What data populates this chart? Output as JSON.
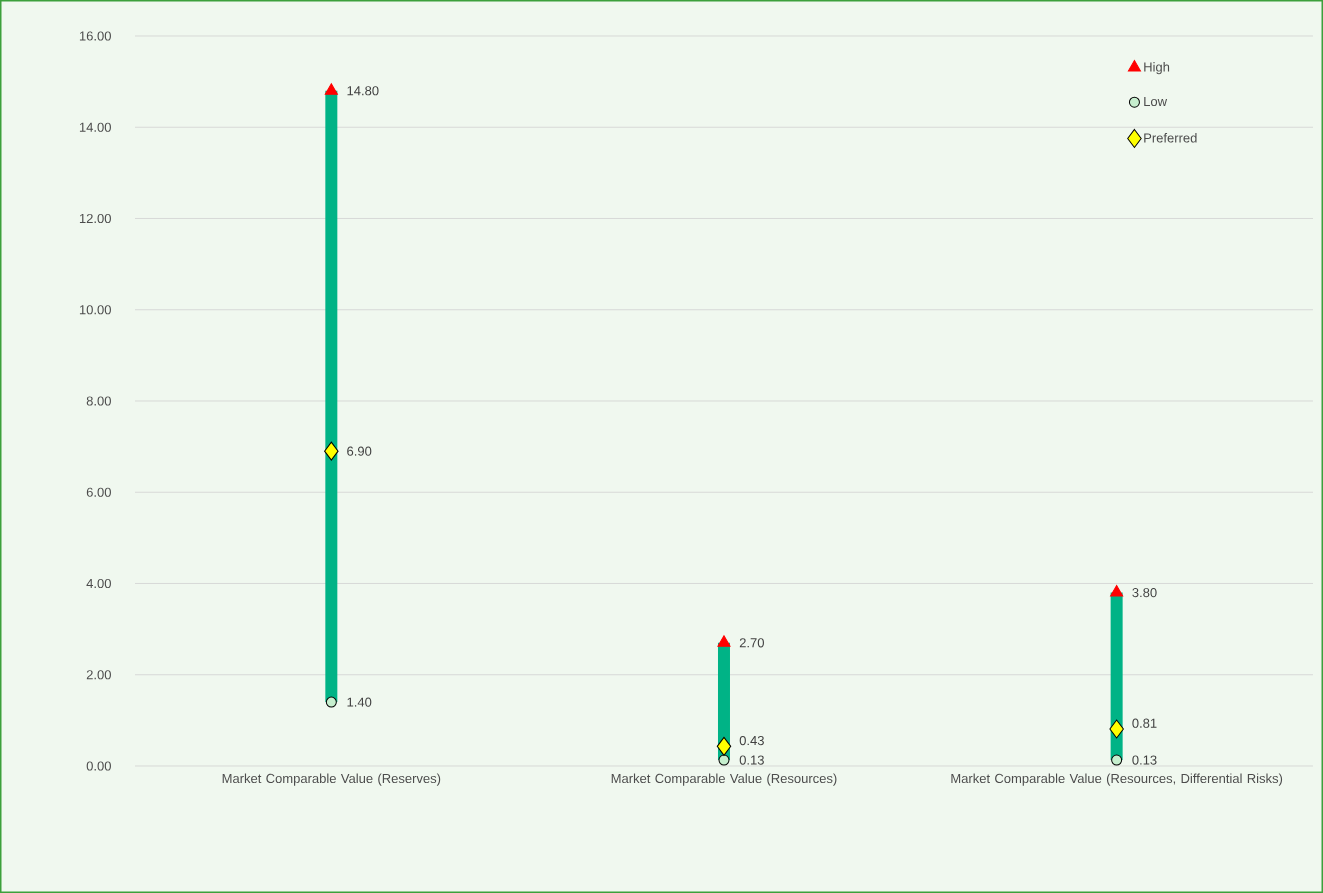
{
  "chart_data": {
    "type": "bar",
    "categories": [
      "Market Comparable Value (Reserves)",
      "Market Comparable Value (Resources)",
      "Market Comparable Value (Resources, Differential Risks)"
    ],
    "series": [
      {
        "color": "#00b386",
        "base": [
          1.4,
          0.13,
          0.13
        ],
        "values": [
          13.4,
          2.57,
          3.67
        ]
      },
      {
        "type": "scatter",
        "name": "High",
        "color": "#ff0000",
        "marker": "triangle",
        "values": [
          14.8,
          2.7,
          3.8
        ],
        "value_labels": [
          "14.80",
          "2.70",
          "3.80"
        ]
      },
      {
        "type": "scatter",
        "name": "Low",
        "color": "#c6efce",
        "marker": "circle",
        "values": [
          1.4,
          0.13,
          0.13
        ],
        "value_labels": [
          "1.40",
          "0.13",
          "0.13"
        ]
      },
      {
        "type": "scatter",
        "name": "Preferred",
        "color": "#ffff00",
        "marker": "diamond",
        "values": [
          6.9,
          0.43,
          0.81
        ],
        "value_labels": [
          "6.90",
          "0.43",
          "0.81"
        ]
      }
    ],
    "ylim": [
      0,
      16
    ],
    "yticks": [
      {
        "value": 0,
        "label": "0.00"
      },
      {
        "value": 2,
        "label": "2.00"
      },
      {
        "value": 4,
        "label": "4.00"
      },
      {
        "value": 6,
        "label": "6.00"
      },
      {
        "value": 8,
        "label": "8.00"
      },
      {
        "value": 10,
        "label": "10.00"
      },
      {
        "value": 12,
        "label": "12.00"
      },
      {
        "value": 14,
        "label": "14.00"
      },
      {
        "value": 16,
        "label": "16.00"
      }
    ],
    "grid": "y",
    "legend": "top right"
  }
}
